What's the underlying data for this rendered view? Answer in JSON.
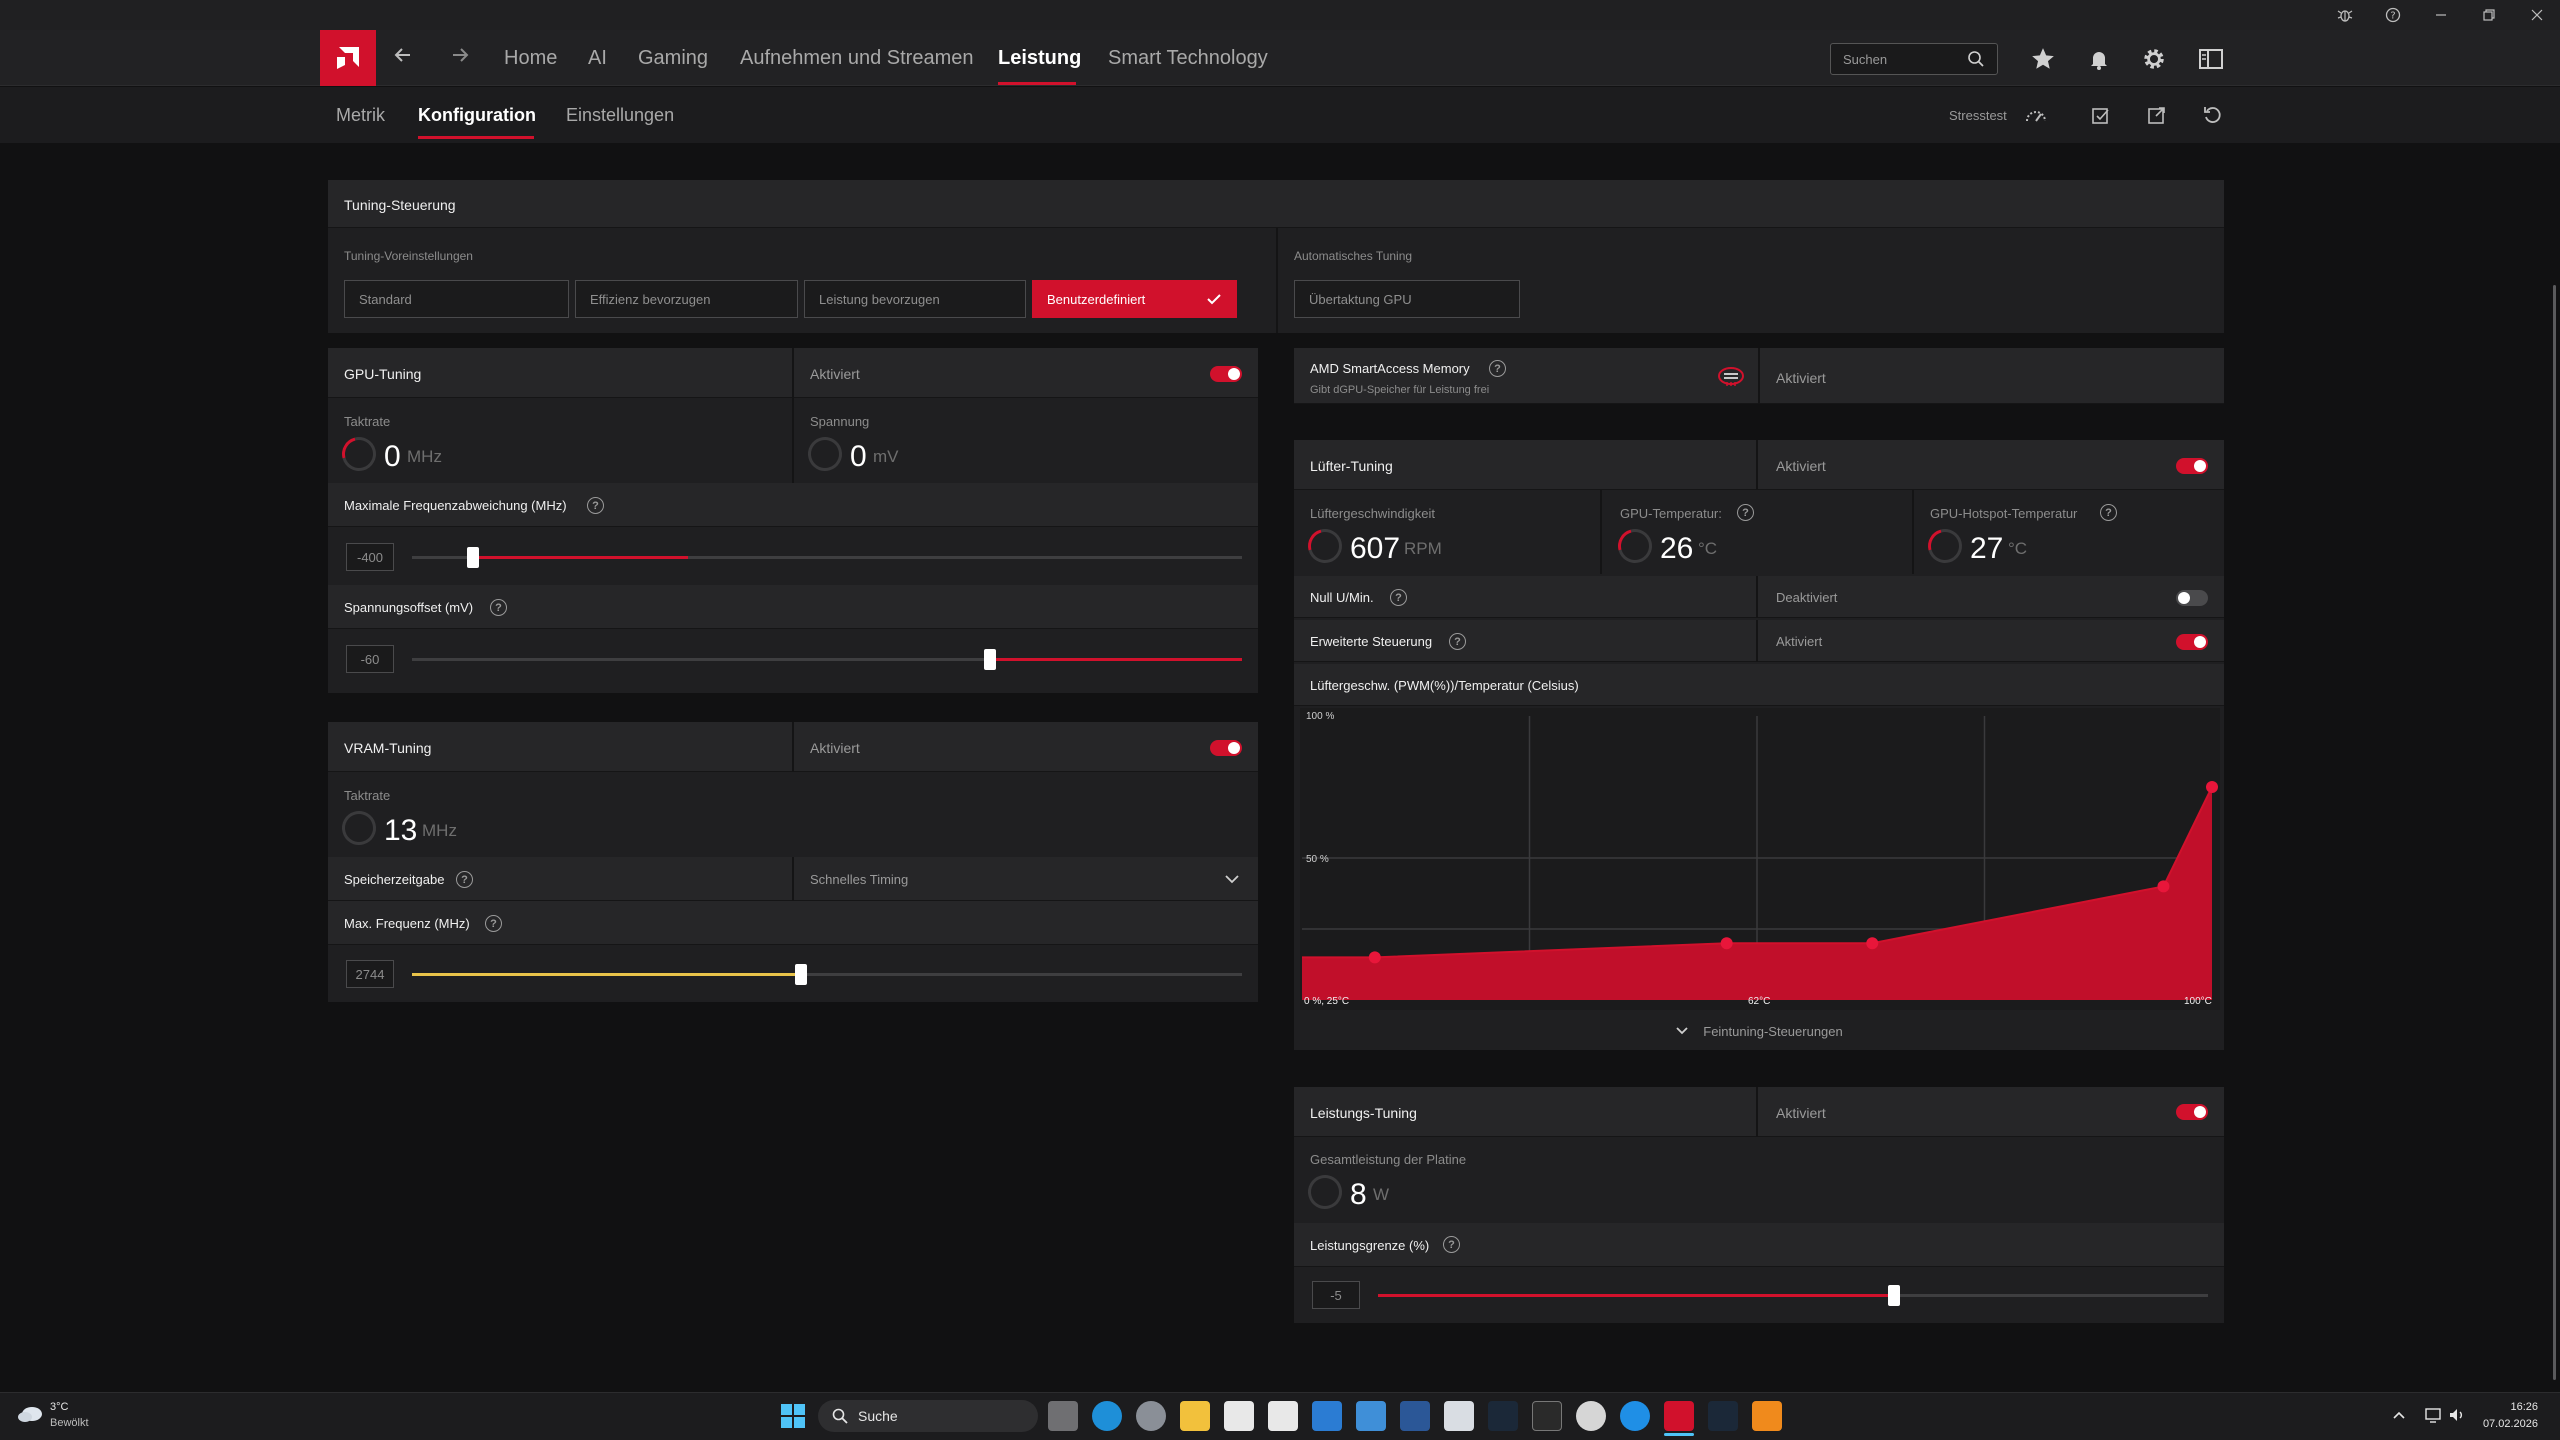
{
  "nav": {
    "tabs": [
      {
        "label": "Home"
      },
      {
        "label": "AI"
      },
      {
        "label": "Gaming"
      },
      {
        "label": "Aufnehmen und Streamen"
      },
      {
        "label": "Leistung"
      },
      {
        "label": "Smart Technology"
      }
    ],
    "active_tab": "Leistung",
    "search_placeholder": "Suchen"
  },
  "subnav": {
    "tabs": [
      {
        "label": "Metrik"
      },
      {
        "label": "Konfiguration"
      },
      {
        "label": "Einstellungen"
      }
    ],
    "active_tab": "Konfiguration",
    "stresstest_label": "Stresstest"
  },
  "tuning": {
    "title": "Tuning-Steuerung",
    "presets_label": "Tuning-Voreinstellungen",
    "presets": [
      "Standard",
      "Effizienz bevorzugen",
      "Leistung bevorzugen",
      "Benutzerdefiniert"
    ],
    "selected_preset": "Benutzerdefiniert",
    "auto_label": "Automatisches Tuning",
    "auto_options": [
      "Übertaktung GPU"
    ]
  },
  "gpu_tuning": {
    "title": "GPU-Tuning",
    "status": "Aktiviert",
    "enabled": true,
    "clock_label": "Taktrate",
    "clock_value": "0",
    "clock_unit": "MHz",
    "voltage_label": "Spannung",
    "voltage_value": "0",
    "voltage_unit": "mV",
    "freq_offset_label": "Maximale Frequenzabweichung (MHz)",
    "freq_offset_value": "-400",
    "freq_offset_fraction": 0.07,
    "voltage_offset_label": "Spannungsoffset (mV)",
    "voltage_offset_value": "-60",
    "voltage_offset_fraction": 0.7
  },
  "vram_tuning": {
    "title": "VRAM-Tuning",
    "status": "Aktiviert",
    "enabled": true,
    "clock_label": "Taktrate",
    "clock_value": "13",
    "clock_unit": "MHz",
    "timing_label": "Speicherzeitgabe",
    "timing_value": "Schnelles Timing",
    "max_freq_label": "Max. Frequenz (MHz)",
    "max_freq_value": "2744",
    "max_freq_fraction": 0.47
  },
  "sam": {
    "title": "AMD SmartAccess Memory",
    "subtitle": "Gibt dGPU-Speicher für Leistung frei",
    "status": "Aktiviert"
  },
  "fan_tuning": {
    "title": "Lüfter-Tuning",
    "status": "Aktiviert",
    "enabled": true,
    "speed_label": "Lüftergeschwindigkeit",
    "speed_value": "607",
    "speed_unit": "RPM",
    "gpu_temp_label": "GPU-Temperatur:",
    "gpu_temp_value": "26",
    "gpu_temp_unit": "°C",
    "hotspot_label": "GPU-Hotspot-Temperatur",
    "hotspot_value": "27",
    "hotspot_unit": "°C",
    "zero_rpm_label": "Null U/Min.",
    "zero_rpm_status": "Deaktiviert",
    "zero_rpm_enabled": false,
    "advanced_label": "Erweiterte Steuerung",
    "advanced_status": "Aktiviert",
    "advanced_enabled": true,
    "curve_title": "Lüftergeschw. (PWM(%))/Temperatur (Celsius)",
    "fine_tuning_label": "Feintuning-Steuerungen"
  },
  "chart_data": {
    "type": "area",
    "title": "Lüftergeschw. (PWM(%))/Temperatur (Celsius)",
    "x": [
      31,
      60,
      72,
      96,
      100
    ],
    "y": [
      15,
      20,
      20,
      40,
      75
    ],
    "xlim": [
      25,
      100
    ],
    "ylim": [
      0,
      100
    ],
    "tick_labels": {
      "y_top": "100 %",
      "y_mid": "50 %",
      "x_left": "0 %, 25°C",
      "x_mid": "62°C",
      "x_right": "100°C"
    },
    "grid": true
  },
  "power_tuning": {
    "title": "Leistungs-Tuning",
    "status": "Aktiviert",
    "enabled": true,
    "board_power_label": "Gesamtleistung der Platine",
    "board_power_value": "8",
    "board_power_unit": "W",
    "power_limit_label": "Leistungsgrenze (%)",
    "power_limit_value": "-5",
    "power_limit_fraction": 0.62
  },
  "taskbar": {
    "weather_temp": "3°C",
    "weather_desc": "Bewölkt",
    "search_label": "Suche",
    "time": "16:26",
    "date": "07.02.2026"
  },
  "colors": {
    "accent": "#d1112c",
    "vram_slider": "#e8c34a",
    "bg": "#111112"
  }
}
